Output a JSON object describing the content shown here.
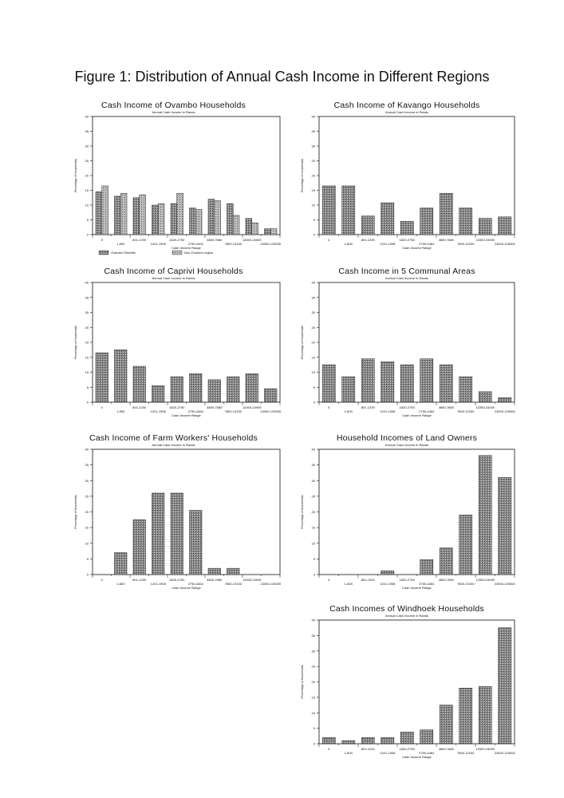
{
  "page": {
    "title": "Figure 1: Distribution of Annual Cash Income in Different Regions"
  },
  "colors": {
    "bar_fill": "#888888",
    "bar_fill_alt": "#bdbdbd",
    "bar_stroke": "#222222",
    "axis": "#111111"
  },
  "chart_data": [
    {
      "id": "ovambo",
      "type": "bar",
      "title": "Cash Income of Ovambo Households",
      "subtitle": "Annual Cash Income in Rands",
      "ylabel": "Percentage of Households",
      "xlabel": "Cash Income Range",
      "ylim": [
        0,
        40
      ],
      "yticks": [
        0,
        5,
        10,
        15,
        20,
        25,
        30,
        35,
        40
      ],
      "categories": [
        "0",
        "1-800",
        "801-1200",
        "1201-1908",
        "1820-2750",
        "2750-4464",
        "4800-7680",
        "7800-13150",
        "13300-24000",
        "24000-125000"
      ],
      "xticks_row1": [
        "0",
        "801-1200",
        "1820-2750",
        "4800-7680",
        "13300-24000"
      ],
      "xticks_row2": [
        "1-800",
        "1201-1908",
        "2750-4464",
        "7800-13150",
        "24000-125000"
      ],
      "series": [
        {
          "name": "Ovambo Resettle",
          "values": [
            14.5,
            13,
            12.5,
            10,
            10.5,
            9,
            12,
            10.5,
            5.5,
            2
          ]
        },
        {
          "name": "Non-Ovambo region",
          "values": [
            16.5,
            14,
            13.5,
            10.5,
            14,
            8.5,
            11.5,
            6.5,
            4,
            2
          ]
        }
      ],
      "legend": [
        "Ovambo Resettle",
        "Non-Ovambo region"
      ]
    },
    {
      "id": "kavango",
      "type": "bar",
      "title": "Cash Income of Kavango Households",
      "subtitle": "Annual Cash Income in Rands",
      "ylabel": "Percentage of Households",
      "xlabel": "Cash Income Range",
      "ylim": [
        0,
        40
      ],
      "yticks": [
        0,
        5,
        10,
        15,
        20,
        25,
        30,
        35,
        40
      ],
      "categories": [
        "0",
        "1-800",
        "801-1200",
        "1201-1908",
        "1820-2750",
        "2750-4464",
        "4800-7680",
        "7800-13150",
        "13300-24000",
        "24000-125000"
      ],
      "xticks_row1": [
        "0",
        "801-1200",
        "1820-2750",
        "4800-7680",
        "13300-24000"
      ],
      "xticks_row2": [
        "1-800",
        "1201-1908",
        "2750-4464",
        "7800-13150",
        "24000-125000"
      ],
      "series": [
        {
          "values": [
            16.5,
            16.5,
            6.3,
            10.8,
            4.5,
            9,
            14,
            9,
            5.5,
            6
          ]
        }
      ]
    },
    {
      "id": "caprivi",
      "type": "bar",
      "title": "Cash Income of Caprivi Households",
      "subtitle": "Annual Cash Income in Rands",
      "ylabel": "Percentage of Households",
      "xlabel": "Cash Income Range",
      "ylim": [
        0,
        40
      ],
      "yticks": [
        0,
        5,
        10,
        15,
        20,
        25,
        30,
        35,
        40
      ],
      "categories": [
        "0",
        "1-800",
        "801-1200",
        "1201-1908",
        "1820-2750",
        "2750-4464",
        "4800-7680",
        "7800-13150",
        "13300-24000",
        "24000-125000"
      ],
      "xticks_row1": [
        "0",
        "801-1200",
        "1820-2750",
        "4800-7680",
        "13300-24000"
      ],
      "xticks_row2": [
        "1-800",
        "1201-1908",
        "2750-4464",
        "7800-13150",
        "24000-125000"
      ],
      "series": [
        {
          "values": [
            16.5,
            17.5,
            12,
            5.5,
            8.5,
            9.5,
            7.5,
            8.5,
            9.5,
            4.5
          ]
        }
      ]
    },
    {
      "id": "communal",
      "type": "bar",
      "title": "Cash Income in 5 Communal Areas",
      "subtitle": "Annual Cash Income in Rands",
      "ylabel": "Percentage of Households",
      "xlabel": "Cash Income Range",
      "ylim": [
        0,
        40
      ],
      "yticks": [
        0,
        5,
        10,
        15,
        20,
        25,
        30,
        35,
        40
      ],
      "categories": [
        "0",
        "1-800",
        "801-1200",
        "1201-1908",
        "1820-2750",
        "2750-4464",
        "4800-7680",
        "7800-13150",
        "13300-24000",
        "24000-125000"
      ],
      "xticks_row1": [
        "0",
        "801-1200",
        "1820-2750",
        "4800-7680",
        "13300-24000"
      ],
      "xticks_row2": [
        "1-800",
        "1201-1908",
        "2750-4464",
        "7800-13150",
        "24000-125000"
      ],
      "series": [
        {
          "values": [
            12.5,
            8.5,
            14.5,
            13.5,
            12.5,
            14.5,
            12.5,
            8.5,
            3.5,
            1.5
          ]
        }
      ]
    },
    {
      "id": "farmworkers",
      "type": "bar",
      "title": "Cash Income of Farm Workers' Households",
      "subtitle": "Annual Cash Income in Rands",
      "ylabel": "Percentage of Households",
      "xlabel": "Cash Income Range",
      "ylim": [
        0,
        40
      ],
      "yticks": [
        0,
        5,
        10,
        15,
        20,
        25,
        30,
        35,
        40
      ],
      "categories": [
        "0",
        "1-800",
        "801-1200",
        "1201-1908",
        "1820-2750",
        "2750-4464",
        "4800-7680",
        "7800-13150",
        "13300-24000",
        "24000-125000"
      ],
      "xticks_row1": [
        "0",
        "801-1200",
        "1820-2750",
        "4800-7680",
        "13300-24000"
      ],
      "xticks_row2": [
        "1-800",
        "1201-1908",
        "2750-4464",
        "7800-13150",
        "24000-125000"
      ],
      "series": [
        {
          "values": [
            0,
            7,
            17.5,
            26,
            26,
            20.5,
            2,
            2,
            0,
            0
          ]
        }
      ]
    },
    {
      "id": "landowners",
      "type": "bar",
      "title": "Household Incomes of Land Owners",
      "subtitle": "Annual Cash Income in Rands",
      "ylabel": "Percentage of Households",
      "xlabel": "Cash Income Range",
      "ylim": [
        0,
        40
      ],
      "yticks": [
        0,
        5,
        10,
        15,
        20,
        25,
        30,
        35,
        40
      ],
      "categories": [
        "0",
        "1-800",
        "801-1200",
        "1201-1908",
        "1820-2750",
        "2750-4464",
        "4800-7680",
        "7800-13150",
        "13300-24000",
        "24000-125000"
      ],
      "xticks_row1": [
        "0",
        "801-1200",
        "1820-2750",
        "4800-7680",
        "13300-24000"
      ],
      "xticks_row2": [
        "1-800",
        "1201-1908",
        "2750-4464",
        "7800-13150",
        "24000-125000"
      ],
      "series": [
        {
          "values": [
            0,
            0,
            0,
            1.2,
            0,
            4.8,
            8.5,
            19,
            38,
            31
          ]
        }
      ]
    },
    {
      "id": "windhoek",
      "type": "bar",
      "title": "Cash Incomes of Windhoek Households",
      "subtitle": "Annual Cash Income in Rands",
      "ylabel": "Percentage of Households",
      "xlabel": "Cash Income Range",
      "ylim": [
        0,
        40
      ],
      "yticks": [
        0,
        5,
        10,
        15,
        20,
        25,
        30,
        35,
        40
      ],
      "categories": [
        "0",
        "1-800",
        "801-1200",
        "1201-1908",
        "1820-2750",
        "2750-4464",
        "4800-7680",
        "7800-13150",
        "13300-24000",
        "24000-125000"
      ],
      "xticks_row1": [
        "0",
        "801-1200",
        "1820-2750",
        "4800-7680",
        "13300-24000"
      ],
      "xticks_row2": [
        "1-800",
        "1201-1908",
        "2750-4464",
        "7800-13150",
        "24000-125000"
      ],
      "series": [
        {
          "values": [
            2,
            1,
            2,
            2,
            3.8,
            4.5,
            12.5,
            18,
            18.5,
            37.5
          ]
        }
      ]
    }
  ]
}
